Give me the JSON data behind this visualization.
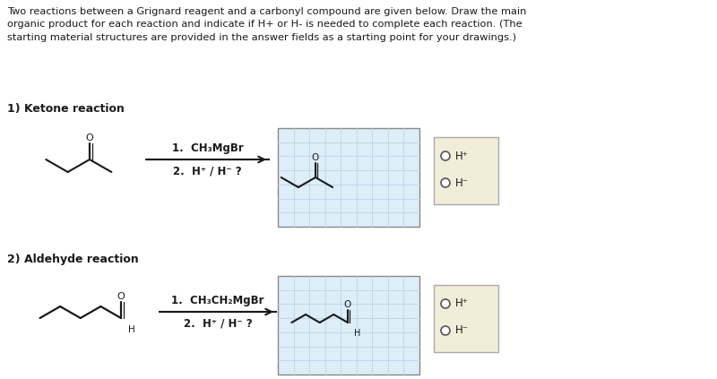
{
  "title_text": "Two reactions between a Grignard reagent and a carbonyl compound are given below. Draw the main\norganic product for each reaction and indicate if H+ or H- is needed to complete each reaction. (The\nstarting material structures are provided in the answer fields as a starting point for your drawings.)",
  "reaction1_label": "1) Ketone reaction",
  "reaction2_label": "2) Aldehyde reaction",
  "reagent1_line1": "1.  CH₃MgBr",
  "reagent1_line2": "2.  H⁺ / H⁻ ?",
  "reagent2_line1": "1.  CH₃CH₂MgBr",
  "reagent2_line2": "2.  H⁺ / H⁻ ?",
  "hplus": "H⁺",
  "hminus": "H⁻",
  "bg_color": "#ffffff",
  "grid_color": "#b8d4e8",
  "grid_bg": "#ddeef8",
  "box_bg": "#f2edd8",
  "text_color": "#1a1a1a",
  "arrow_color": "#1a1a1a"
}
